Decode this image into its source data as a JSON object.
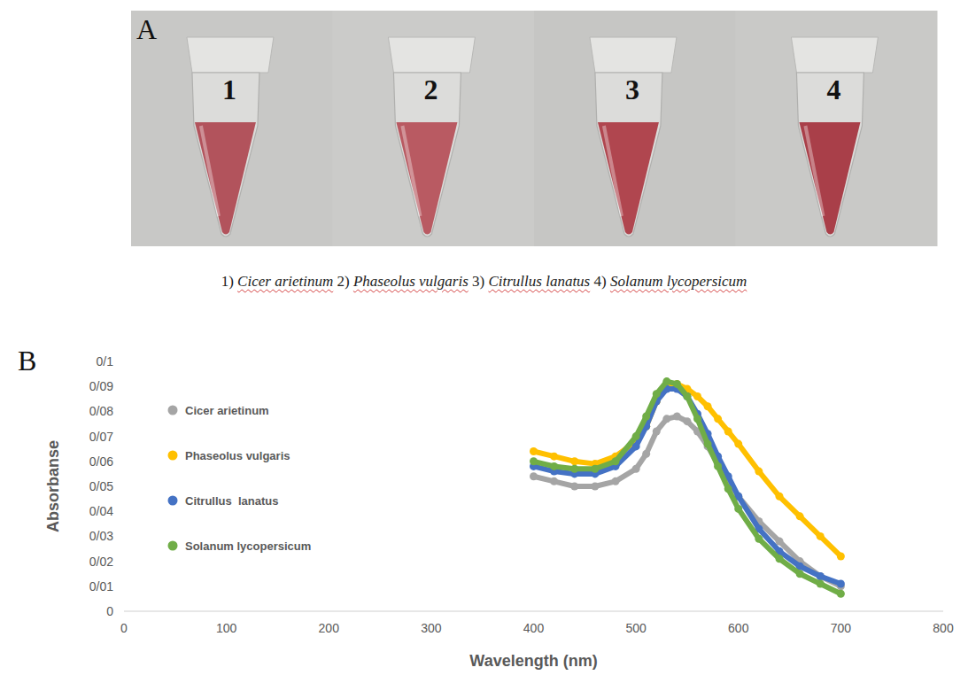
{
  "panel_a": {
    "label": "A",
    "tubes": [
      {
        "label": "1",
        "color": "#b2535c"
      },
      {
        "label": "2",
        "color": "#b95a62"
      },
      {
        "label": "3",
        "color": "#b0464f"
      },
      {
        "label": "4",
        "color": "#a93f49"
      }
    ],
    "caption": [
      {
        "number": "1)",
        "name": "Cicer arietinum"
      },
      {
        "number": "2)",
        "name": "Phaseolus vulgaris"
      },
      {
        "number": "3)",
        "name": "Citrullus lanatus"
      },
      {
        "number": "4)",
        "name": "Solanum lycopersicum"
      }
    ]
  },
  "chart_data": {
    "type": "line",
    "panel_label": "B",
    "x_label": "Wavelength (nm)",
    "y_label": "Absorbanse",
    "x": [
      400,
      420,
      440,
      460,
      480,
      500,
      510,
      520,
      530,
      540,
      550,
      560,
      570,
      580,
      590,
      600,
      620,
      640,
      660,
      680,
      700
    ],
    "series": [
      {
        "name": "Cicer arietinum",
        "color": "#a5a5a5",
        "marker": "circle",
        "line_style": "solid",
        "values": [
          0.054,
          0.052,
          0.05,
          0.05,
          0.052,
          0.057,
          0.063,
          0.072,
          0.077,
          0.078,
          0.076,
          0.072,
          0.066,
          0.059,
          0.052,
          0.046,
          0.036,
          0.028,
          0.02,
          0.014,
          0.01
        ]
      },
      {
        "name": "Phaseolus vulgaris",
        "color": "#ffc000",
        "marker": "circle",
        "line_style": "solid",
        "values": [
          0.064,
          0.062,
          0.06,
          0.059,
          0.062,
          0.068,
          0.074,
          0.084,
          0.09,
          0.091,
          0.089,
          0.086,
          0.082,
          0.077,
          0.072,
          0.067,
          0.056,
          0.046,
          0.038,
          0.03,
          0.022
        ]
      },
      {
        "name": "Citrullus  lanatus",
        "color": "#4472c4",
        "marker": "circle",
        "line_style": "solid",
        "values": [
          0.058,
          0.056,
          0.055,
          0.055,
          0.058,
          0.066,
          0.074,
          0.084,
          0.089,
          0.089,
          0.086,
          0.079,
          0.071,
          0.062,
          0.054,
          0.046,
          0.033,
          0.024,
          0.018,
          0.014,
          0.011
        ]
      },
      {
        "name": "Solanum lycopersicum",
        "color": "#70ad47",
        "marker": "circle",
        "line_style": "solid",
        "values": [
          0.06,
          0.058,
          0.057,
          0.057,
          0.06,
          0.07,
          0.078,
          0.087,
          0.092,
          0.091,
          0.086,
          0.077,
          0.067,
          0.058,
          0.049,
          0.041,
          0.029,
          0.021,
          0.015,
          0.011,
          0.007
        ]
      }
    ],
    "xlim": [
      0,
      800
    ],
    "xticks": [
      0,
      100,
      200,
      300,
      400,
      500,
      600,
      700,
      800
    ],
    "ylim": [
      0,
      0.1
    ],
    "yticks": [
      0,
      {
        "value": 0.01,
        "label": "0/01"
      },
      {
        "value": 0.02,
        "label": "0/02"
      },
      {
        "value": 0.03,
        "label": "0/03"
      },
      {
        "value": 0.04,
        "label": "0/04"
      },
      {
        "value": 0.05,
        "label": "0/05"
      },
      {
        "value": 0.06,
        "label": "0/06"
      },
      {
        "value": 0.07,
        "label": "0/07"
      },
      {
        "value": 0.08,
        "label": "0/08"
      },
      {
        "value": 0.09,
        "label": "0/09"
      },
      {
        "value": 0.1,
        "label": "0/1"
      }
    ],
    "grid": false,
    "legend": "upper left"
  }
}
